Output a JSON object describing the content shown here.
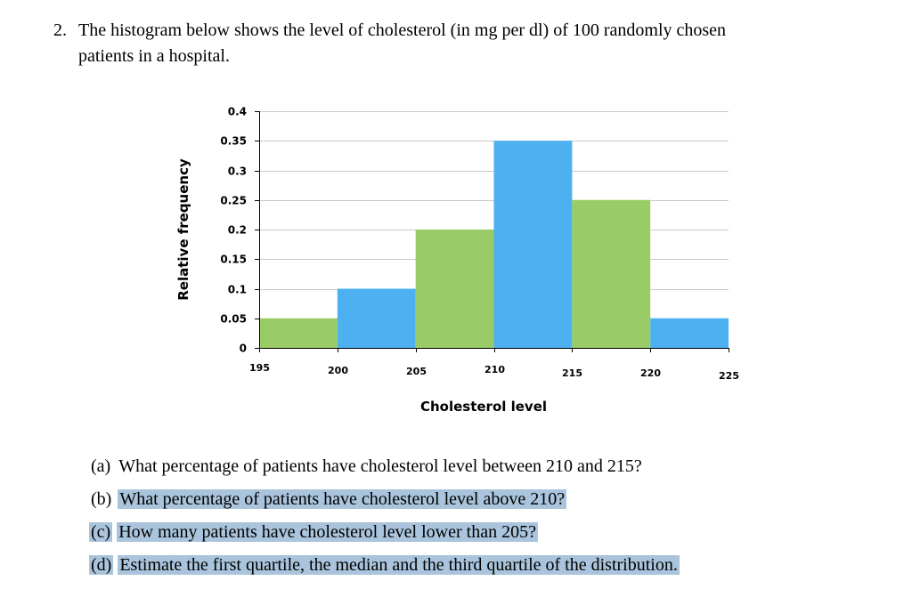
{
  "question": {
    "number": "2.",
    "text_line1": "The histogram below shows the level of cholesterol (in mg per dl) of 100 randomly chosen",
    "text_line2": "patients in a hospital."
  },
  "chart_data": {
    "type": "bar",
    "title": "",
    "xlabel": "Cholesterol level",
    "ylabel": "Relative frequency",
    "bin_edges": [
      195,
      200,
      205,
      210,
      215,
      220,
      225
    ],
    "values": [
      0.05,
      0.1,
      0.2,
      0.35,
      0.25,
      0.05
    ],
    "bar_colors": [
      "#99cc66",
      "#4db0f0",
      "#99cc66",
      "#4db0f0",
      "#99cc66",
      "#4db0f0"
    ],
    "x_ticks": [
      "195",
      "200",
      "205",
      "210",
      "215",
      "220",
      "225"
    ],
    "y_ticks": [
      "0",
      "0.05",
      "0.1",
      "0.15",
      "0.2",
      "0.25",
      "0.3",
      "0.35",
      "0.4"
    ],
    "ylim": [
      0,
      0.4
    ],
    "xlim": [
      195,
      225
    ],
    "grid": true,
    "colors": {
      "green": "#99cc66",
      "blue": "#4db0f0",
      "grid": "#c8c8c8"
    }
  },
  "subquestions": [
    {
      "label": "(a)",
      "text": "What percentage of patients have cholesterol level between 210 and 215?",
      "highlighted": false
    },
    {
      "label": "(b)",
      "text": "What percentage of patients have cholesterol level above 210?",
      "highlighted": true
    },
    {
      "label": "(c)",
      "text": "How many patients have cholesterol level lower than 205?",
      "highlighted": true
    },
    {
      "label": "(d)",
      "text": "Estimate the first quartile, the median and the third quartile of the distribution.",
      "highlighted": true
    }
  ],
  "highlight_color": "#a9c4dc"
}
